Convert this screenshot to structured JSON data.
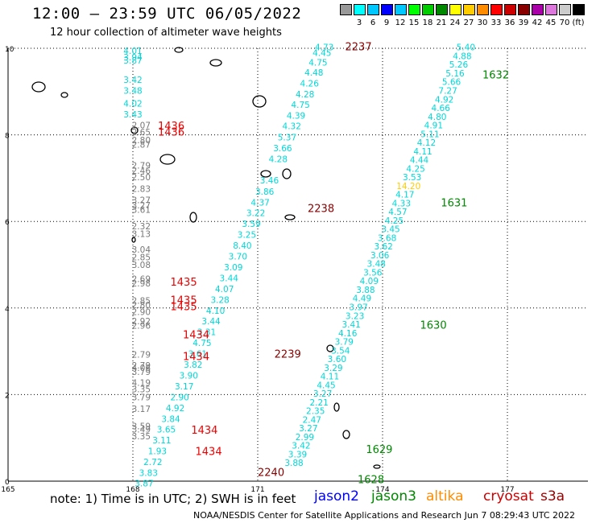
{
  "title": "12:00 – 23:59 UTC 06/05/2022",
  "subtitle": "12 hour collection of altimeter wave heights",
  "footer": {
    "note": "note:  1) Time is in UTC;  2) SWH is in feet",
    "credit": "NOAA/NESDIS Center for Satellite Applications and Research    Jun  7 08:29:43 UTC 2022",
    "satellites": [
      {
        "name": "jason2",
        "color": "#0000ff"
      },
      {
        "name": "jason3",
        "color": "#008800"
      },
      {
        "name": "altika",
        "color": "#ff8c00"
      },
      {
        "name": "cryosat",
        "color": "#cc0000"
      },
      {
        "name": "s3a",
        "color": "#990000"
      }
    ]
  },
  "legend": {
    "colors": [
      "#999999",
      "#00ffff",
      "#00c8ff",
      "#0000ff",
      "#00c8ff",
      "#00ff00",
      "#00cc00",
      "#008800",
      "#ffff00",
      "#ffcc00",
      "#ff8c00",
      "#ff0000",
      "#cc0000",
      "#880000",
      "#aa00aa",
      "#dd77dd",
      "#cccccc",
      "#000000"
    ],
    "labels": [
      "3",
      "6",
      "9",
      "12",
      "15",
      "18",
      "21",
      "24",
      "27",
      "30",
      "33",
      "36",
      "39",
      "42",
      "45",
      "70",
      "(ft)"
    ]
  },
  "chart_data": {
    "type": "scatter",
    "title": "12:00 – 23:59 UTC 06/05/2022",
    "xlabel": "",
    "ylabel": "",
    "xlim": [
      165,
      177
    ],
    "ylim": [
      0,
      10
    ],
    "x_ticks": [
      "165",
      "168",
      "171",
      "174",
      "177"
    ],
    "y_ticks": [
      "0",
      "2",
      "4",
      "6",
      "8",
      "10"
    ],
    "grid": true,
    "tracks": [
      {
        "lon": 168.0,
        "color": "#00d8d8",
        "points": [
          [
            9.87,
            "4.01"
          ],
          [
            9.72,
            "3.94"
          ],
          [
            9.65,
            "3.87"
          ],
          [
            9.2,
            "3.42"
          ],
          [
            8.95,
            "3.48"
          ],
          [
            8.65,
            "4.02"
          ],
          [
            8.4,
            "3.43"
          ]
        ]
      },
      {
        "lon": 168.2,
        "color": "#777777",
        "points": [
          [
            8.15,
            "2.07"
          ],
          [
            7.99,
            "2.65"
          ],
          [
            7.81,
            "2.80"
          ],
          [
            7.7,
            "2.87"
          ],
          [
            7.22,
            "2.79"
          ],
          [
            7.1,
            "2.46"
          ],
          [
            6.95,
            "2.50"
          ],
          [
            6.68,
            "2.83"
          ],
          [
            6.42,
            "3.27"
          ],
          [
            6.3,
            "3.27"
          ],
          [
            6.2,
            "3.61"
          ],
          [
            5.82,
            "2.32"
          ],
          [
            5.64,
            "3.13"
          ],
          [
            5.28,
            "3.04"
          ],
          [
            5.1,
            "2.85"
          ],
          [
            4.93,
            "3.08"
          ],
          [
            4.6,
            "2.69"
          ],
          [
            4.5,
            "2.98"
          ],
          [
            4.1,
            "2.85"
          ],
          [
            4.0,
            "2.80"
          ],
          [
            3.84,
            "2.90"
          ],
          [
            3.62,
            "2.92"
          ],
          [
            3.52,
            "2.96"
          ],
          [
            2.85,
            "2.79"
          ],
          [
            2.6,
            "2.79"
          ],
          [
            2.55,
            "4.06"
          ],
          [
            2.45,
            "3.79"
          ],
          [
            2.2,
            "4.19"
          ],
          [
            2.05,
            "3.35"
          ],
          [
            1.87,
            "3.79"
          ],
          [
            1.6,
            "3.17"
          ],
          [
            1.2,
            "3.59"
          ],
          [
            1.12,
            "3.49"
          ],
          [
            0.97,
            "3.35"
          ]
        ]
      },
      {
        "lon": 172.6,
        "color": "#00d8d8",
        "points": [
          [
            9.95,
            "4.73"
          ],
          [
            9.82,
            "4.45"
          ],
          [
            9.6,
            "4.75"
          ],
          [
            9.37,
            "4.48"
          ],
          [
            9.12,
            "4.26"
          ],
          [
            8.87,
            "4.28"
          ],
          [
            8.62,
            "4.75"
          ],
          [
            8.37,
            "4.39"
          ],
          [
            8.13,
            "4.32"
          ],
          [
            7.87,
            "5.37"
          ],
          [
            7.62,
            "3.66"
          ],
          [
            7.37,
            "4.28"
          ],
          [
            6.88,
            "3.46"
          ],
          [
            6.62,
            "3.86"
          ],
          [
            6.37,
            "4.37"
          ],
          [
            6.12,
            "3.22"
          ],
          [
            5.87,
            "3.59"
          ],
          [
            5.62,
            "3.25"
          ],
          [
            5.37,
            "8.40"
          ],
          [
            5.12,
            "3.70"
          ],
          [
            4.87,
            "3.09"
          ],
          [
            4.62,
            "3.44"
          ],
          [
            4.37,
            "4.07"
          ],
          [
            4.12,
            "3.28"
          ],
          [
            3.87,
            "4.10"
          ],
          [
            3.62,
            "3.44"
          ],
          [
            3.37,
            "3.31"
          ],
          [
            3.12,
            "4.75"
          ],
          [
            2.87,
            "3.61"
          ],
          [
            2.62,
            "3.82"
          ],
          [
            2.37,
            "3.90"
          ],
          [
            2.12,
            "3.17"
          ],
          [
            1.87,
            "2.90"
          ],
          [
            1.62,
            "4.92"
          ],
          [
            1.37,
            "3.84"
          ],
          [
            1.12,
            "3.65"
          ],
          [
            0.87,
            "3.11"
          ],
          [
            0.62,
            "1.93"
          ],
          [
            0.37,
            "2.72"
          ],
          [
            0.12,
            "3.83"
          ],
          [
            -0.12,
            "3.87"
          ]
        ]
      },
      {
        "lon": 176.0,
        "color": "#00d8d8",
        "points": [
          [
            9.95,
            "5.40"
          ],
          [
            9.75,
            "4.88"
          ],
          [
            9.55,
            "5.26"
          ],
          [
            9.35,
            "5.16"
          ],
          [
            9.15,
            "5.66"
          ],
          [
            8.95,
            "7.27"
          ],
          [
            8.75,
            "4.92"
          ],
          [
            8.55,
            "4.66"
          ],
          [
            8.35,
            "4.80"
          ],
          [
            8.15,
            "4.91"
          ],
          [
            7.95,
            "5.11"
          ],
          [
            7.75,
            "4.12"
          ],
          [
            7.55,
            "4.11"
          ],
          [
            7.35,
            "4.44"
          ],
          [
            7.15,
            "4.25"
          ],
          [
            6.95,
            "3.53"
          ],
          [
            6.75,
            "14.20"
          ],
          [
            6.55,
            "4.17"
          ],
          [
            6.35,
            "4.33"
          ],
          [
            6.15,
            "4.57"
          ],
          [
            5.95,
            "4.25"
          ],
          [
            5.75,
            "3.45"
          ],
          [
            5.55,
            "3.68"
          ],
          [
            5.35,
            "3.62"
          ],
          [
            5.15,
            "3.06"
          ],
          [
            4.95,
            "3.48"
          ],
          [
            4.75,
            "3.56"
          ],
          [
            4.55,
            "4.09"
          ],
          [
            4.35,
            "3.88"
          ],
          [
            4.15,
            "4.49"
          ],
          [
            3.95,
            "3.97"
          ],
          [
            3.75,
            "3.23"
          ],
          [
            3.55,
            "3.41"
          ],
          [
            3.35,
            "4.16"
          ],
          [
            3.15,
            "3.79"
          ],
          [
            2.95,
            "3.54"
          ],
          [
            2.75,
            "3.60"
          ],
          [
            2.55,
            "3.29"
          ],
          [
            2.35,
            "4.11"
          ],
          [
            2.15,
            "4.45"
          ],
          [
            1.95,
            "3.27"
          ],
          [
            1.75,
            "2.21"
          ],
          [
            1.55,
            "2.35"
          ],
          [
            1.35,
            "2.47"
          ],
          [
            1.15,
            "3.27"
          ],
          [
            0.95,
            "2.99"
          ],
          [
            0.75,
            "3.42"
          ],
          [
            0.55,
            "3.39"
          ],
          [
            0.35,
            "3.88"
          ]
        ]
      }
    ],
    "time_labels": [
      {
        "text": "2237",
        "color": "#880000",
        "lon": 173.1,
        "lat": 9.95
      },
      {
        "text": "1632",
        "color": "#008800",
        "lon": 176.4,
        "lat": 9.3
      },
      {
        "text": "1436",
        "color": "#ee0000",
        "lon": 168.6,
        "lat": 8.12
      },
      {
        "text": "1436",
        "color": "#ee0000",
        "lon": 168.6,
        "lat": 7.98
      },
      {
        "text": "2238",
        "color": "#880000",
        "lon": 172.2,
        "lat": 6.22
      },
      {
        "text": "1631",
        "color": "#008800",
        "lon": 175.4,
        "lat": 6.35
      },
      {
        "text": "1435",
        "color": "#ee0000",
        "lon": 168.9,
        "lat": 4.52
      },
      {
        "text": "1435",
        "color": "#ee0000",
        "lon": 168.9,
        "lat": 4.1
      },
      {
        "text": "1435",
        "color": "#ee0000",
        "lon": 168.9,
        "lat": 3.95
      },
      {
        "text": "1630",
        "color": "#008800",
        "lon": 174.9,
        "lat": 3.52
      },
      {
        "text": "1434",
        "color": "#ee0000",
        "lon": 169.2,
        "lat": 3.3
      },
      {
        "text": "1434",
        "color": "#ee0000",
        "lon": 169.2,
        "lat": 2.8
      },
      {
        "text": "2239",
        "color": "#880000",
        "lon": 171.4,
        "lat": 2.85
      },
      {
        "text": "1434",
        "color": "#ee0000",
        "lon": 169.4,
        "lat": 1.1
      },
      {
        "text": "1434",
        "color": "#ee0000",
        "lon": 169.5,
        "lat": 0.6
      },
      {
        "text": "1629",
        "color": "#008800",
        "lon": 173.6,
        "lat": 0.65
      },
      {
        "text": "2240",
        "color": "#880000",
        "lon": 171.0,
        "lat": 0.12
      },
      {
        "text": "1628",
        "color": "#008800",
        "lon": 173.4,
        "lat": -0.05
      }
    ]
  }
}
